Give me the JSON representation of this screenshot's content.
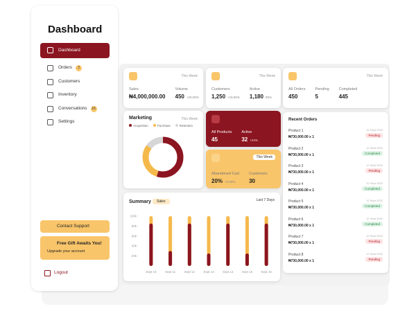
{
  "sidebar": {
    "title": "Dashboard",
    "nav": [
      {
        "label": "Dashboard"
      },
      {
        "label": "Orders",
        "badge": "3"
      },
      {
        "label": "Customers"
      },
      {
        "label": "Inventory"
      },
      {
        "label": "Conversations",
        "badge": "16"
      },
      {
        "label": "Settings"
      }
    ],
    "support": "Contact Support",
    "gift": {
      "title": "Free Gift Awaits You!",
      "link": "Upgrade your account"
    },
    "logout": "Logout"
  },
  "stats": [
    {
      "period": "This Week",
      "items": [
        {
          "label": "Sales",
          "value": "₦4,000,000.00"
        },
        {
          "label": "Volume",
          "value": "450",
          "change": "+20.00%"
        }
      ]
    },
    {
      "period": "This Week",
      "items": [
        {
          "label": "Customers",
          "value": "1,250",
          "change": "+15.80%"
        },
        {
          "label": "Active",
          "value": "1,180",
          "change": "85%"
        }
      ]
    },
    {
      "period": "This Week",
      "items": [
        {
          "label": "All Orders",
          "value": "450"
        },
        {
          "label": "Pending",
          "value": "5"
        },
        {
          "label": "Completed",
          "value": "445"
        }
      ]
    }
  ],
  "marketing": {
    "title": "Marketing",
    "period": "This Week",
    "legend": [
      "Acquisition",
      "Purchase",
      "Retention"
    ],
    "values": [
      55,
      30,
      15
    ],
    "colors": [
      "#8b1520",
      "#f5b94b",
      "#d6d6d6"
    ]
  },
  "products": {
    "items": [
      {
        "label": "All Products",
        "value": "45"
      },
      {
        "label": "Active",
        "value": "32",
        "change": "+24%"
      }
    ]
  },
  "cart": {
    "period": "This Week",
    "items": [
      {
        "label": "Abandoned Cart",
        "value": "20%",
        "change": "+0.00%"
      },
      {
        "label": "Customers",
        "value": "30"
      }
    ]
  },
  "orders": {
    "title": "Recent Orders",
    "rows": [
      {
        "name": "Product 1",
        "price": "₦730,000.00 x 1",
        "date": "12 Sept 2022",
        "status": "Pending"
      },
      {
        "name": "Product 2",
        "price": "₦730,000.00 x 1",
        "date": "12 Sept 2022",
        "status": "Completed"
      },
      {
        "name": "Product 3",
        "price": "₦730,000.00 x 1",
        "date": "12 Sept 2022",
        "status": "Pending"
      },
      {
        "name": "Product 4",
        "price": "₦730,000.00 x 1",
        "date": "12 Sept 2022",
        "status": "Completed"
      },
      {
        "name": "Product 5",
        "price": "₦730,000.00 x 1",
        "date": "12 Sept 2022",
        "status": "Completed"
      },
      {
        "name": "Product 6",
        "price": "₦730,000.00 x 1",
        "date": "12 Sept 2022",
        "status": "Completed"
      },
      {
        "name": "Product 7",
        "price": "₦730,000.00 x 1",
        "date": "12 Sept 2022",
        "status": "Pending"
      },
      {
        "name": "Product 8",
        "price": "₦730,000.00 x 1",
        "date": "12 Sept 2022",
        "status": "Pending"
      }
    ]
  },
  "summary": {
    "title": "Summary",
    "metric": "Sales",
    "period": "Last 7 Days",
    "chart": {
      "type": "bar",
      "categories": [
        "Sept 10",
        "Sept 11",
        "Sept 12",
        "Sept 13",
        "Sept 14",
        "Sept 15",
        "Sept 16"
      ],
      "values": [
        85,
        30,
        85,
        25,
        85,
        25,
        85
      ],
      "track_color": "#f5b94b",
      "color": "#8b1520",
      "ylim": [
        0,
        100
      ],
      "yticks": [
        {
          "value": 20,
          "label": "20k"
        },
        {
          "value": 40,
          "label": "40k"
        },
        {
          "value": 60,
          "label": "60k"
        },
        {
          "value": 80,
          "label": "80k"
        },
        {
          "value": 100,
          "label": "100k"
        }
      ]
    }
  }
}
